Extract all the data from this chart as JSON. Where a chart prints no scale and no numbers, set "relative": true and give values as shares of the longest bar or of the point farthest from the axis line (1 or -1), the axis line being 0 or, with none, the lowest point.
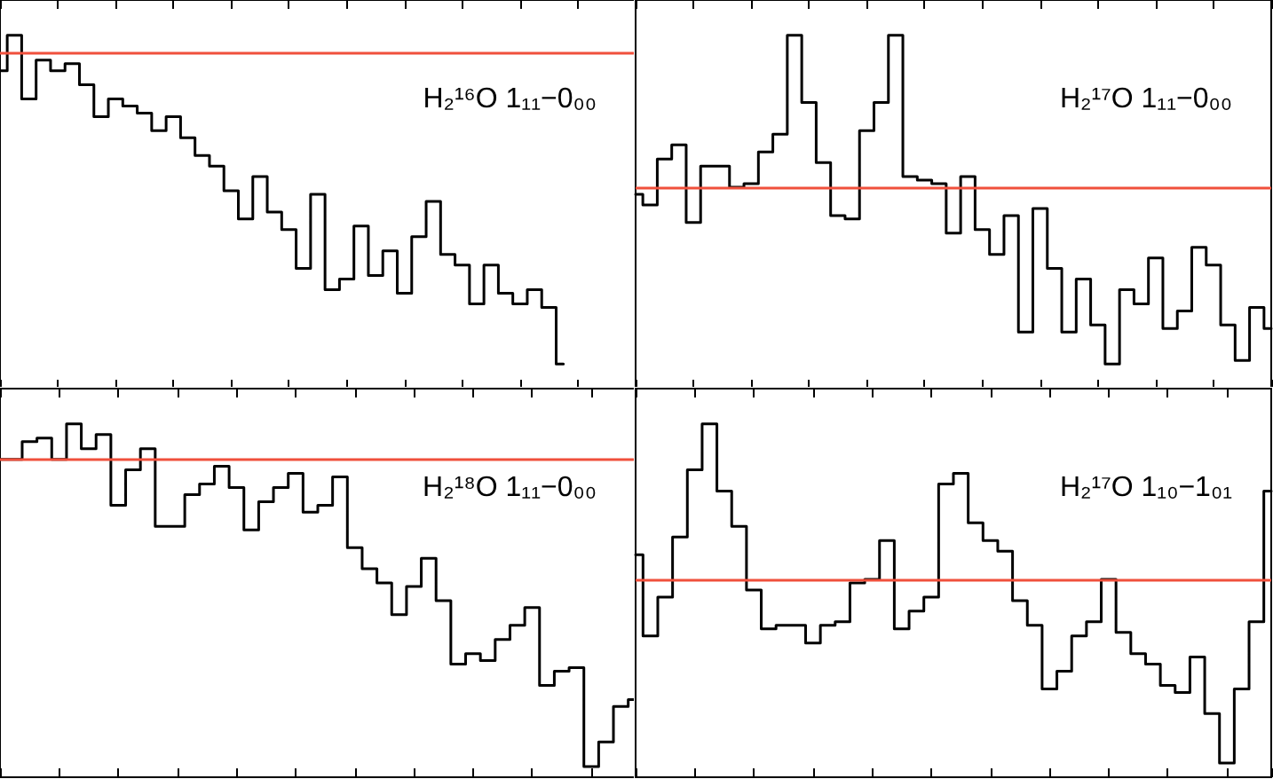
{
  "chart_data": [
    {
      "type": "step",
      "title": "H₂¹⁶O 1₁₁−0₀₀",
      "relative": true,
      "tick_labels": false,
      "marker": "none",
      "line_style": "solid",
      "color": "#000000",
      "categories": [
        null,
        null,
        null,
        null,
        null,
        null,
        null,
        null,
        null,
        null,
        null,
        null,
        null,
        null,
        null,
        null,
        null,
        null,
        null,
        null,
        null,
        null,
        null,
        null,
        null,
        null,
        null,
        null,
        null,
        null,
        null,
        null,
        null,
        null,
        null,
        null,
        null,
        null,
        null,
        null,
        null,
        null,
        null,
        null,
        null
      ],
      "values": [
        0.9,
        1.0,
        0.82,
        0.93,
        0.9,
        0.92,
        0.86,
        0.77,
        0.82,
        0.8,
        0.78,
        0.73,
        0.77,
        0.71,
        0.66,
        0.63,
        0.56,
        0.48,
        0.6,
        0.5,
        0.45,
        0.34,
        0.55,
        0.28,
        0.31,
        0.46,
        0.32,
        0.39,
        0.27,
        0.43,
        0.53,
        0.38,
        0.35,
        0.24,
        0.35,
        0.27,
        0.24,
        0.28,
        0.23,
        0.07,
        null,
        null,
        null,
        null,
        null
      ],
      "ref_lines": [
        {
          "axis": "y",
          "value": 0.95,
          "color": "#f0503c"
        }
      ]
    },
    {
      "type": "step",
      "title": "H₂¹⁷O 1₁₁−0₀₀",
      "relative": true,
      "tick_labels": false,
      "marker": "none",
      "line_style": "solid",
      "color": "#000000",
      "categories": [
        null,
        null,
        null,
        null,
        null,
        null,
        null,
        null,
        null,
        null,
        null,
        null,
        null,
        null,
        null,
        null,
        null,
        null,
        null,
        null,
        null,
        null,
        null,
        null,
        null,
        null,
        null,
        null,
        null,
        null,
        null,
        null,
        null,
        null,
        null,
        null,
        null,
        null,
        null,
        null,
        null,
        null,
        null,
        null,
        null
      ],
      "values": [
        0.55,
        0.52,
        0.65,
        0.69,
        0.47,
        0.63,
        0.63,
        0.57,
        0.58,
        0.67,
        0.72,
        1.0,
        0.81,
        0.64,
        0.49,
        0.48,
        0.73,
        0.81,
        1.0,
        0.6,
        0.59,
        0.58,
        0.44,
        0.6,
        0.45,
        0.38,
        0.49,
        0.16,
        0.51,
        0.34,
        0.16,
        0.31,
        0.18,
        0.07,
        0.28,
        0.24,
        0.37,
        0.17,
        0.22,
        0.4,
        0.35,
        0.18,
        0.08,
        0.23,
        0.17
      ],
      "ref_lines": [
        {
          "axis": "y",
          "value": 0.57,
          "color": "#f0503c"
        }
      ]
    },
    {
      "type": "step",
      "title": "H₂¹⁸O 1₁₁−0₀₀",
      "relative": true,
      "tick_labels": false,
      "marker": "none",
      "line_style": "solid",
      "color": "#000000",
      "categories": [
        null,
        null,
        null,
        null,
        null,
        null,
        null,
        null,
        null,
        null,
        null,
        null,
        null,
        null,
        null,
        null,
        null,
        null,
        null,
        null,
        null,
        null,
        null,
        null,
        null,
        null,
        null,
        null,
        null,
        null,
        null,
        null,
        null,
        null,
        null,
        null,
        null,
        null,
        null,
        null,
        null,
        null,
        null,
        null
      ],
      "values": [
        0.9,
        0.9,
        0.95,
        0.96,
        0.9,
        1.0,
        0.93,
        0.97,
        0.77,
        0.87,
        0.93,
        0.71,
        0.71,
        0.8,
        0.83,
        0.88,
        0.82,
        0.7,
        0.78,
        0.82,
        0.86,
        0.75,
        0.77,
        0.85,
        0.65,
        0.59,
        0.55,
        0.46,
        0.54,
        0.62,
        0.5,
        0.32,
        0.35,
        0.33,
        0.39,
        0.43,
        0.48,
        0.26,
        0.3,
        0.31,
        0.03,
        0.1,
        0.2,
        0.22
      ],
      "ref_lines": [
        {
          "axis": "y",
          "value": 0.9,
          "color": "#f0503c"
        }
      ]
    },
    {
      "type": "step",
      "title": "H₂¹⁷O 1₁₀−1₀₁",
      "relative": true,
      "tick_labels": false,
      "marker": "none",
      "line_style": "solid",
      "color": "#000000",
      "categories": [
        null,
        null,
        null,
        null,
        null,
        null,
        null,
        null,
        null,
        null,
        null,
        null,
        null,
        null,
        null,
        null,
        null,
        null,
        null,
        null,
        null,
        null,
        null,
        null,
        null,
        null,
        null,
        null,
        null,
        null,
        null,
        null,
        null,
        null,
        null,
        null,
        null,
        null,
        null,
        null,
        null,
        null,
        null,
        null
      ],
      "values": [
        0.63,
        0.4,
        0.51,
        0.68,
        0.87,
        1.0,
        0.81,
        0.71,
        0.53,
        0.42,
        0.43,
        0.43,
        0.38,
        0.43,
        0.44,
        0.55,
        0.56,
        0.67,
        0.42,
        0.47,
        0.51,
        0.83,
        0.86,
        0.72,
        0.67,
        0.64,
        0.5,
        0.43,
        0.25,
        0.3,
        0.4,
        0.44,
        0.56,
        0.41,
        0.35,
        0.32,
        0.26,
        0.24,
        0.34,
        0.18,
        0.04,
        0.25,
        0.44,
        0.81
      ],
      "ref_lines": [
        {
          "axis": "y",
          "value": 0.56,
          "color": "#f0503c"
        }
      ]
    }
  ]
}
